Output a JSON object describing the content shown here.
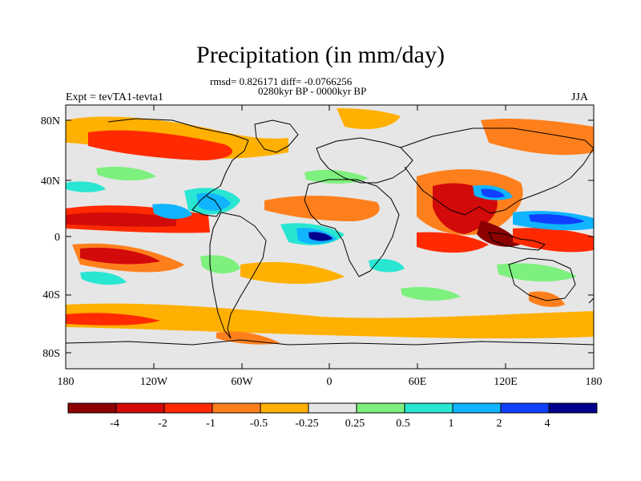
{
  "title": "Precipitation (in mm/day)",
  "stats_line": "rmsd= 0.826171 diff= -0.0766256",
  "period_line": "0280kyr BP - 0000kyr BP",
  "experiment": "Expt = tevTA1-tevta1",
  "season": "JJA",
  "lat_labels": [
    "80N",
    "40N",
    "0",
    "40S",
    "80S"
  ],
  "lon_labels": [
    "180",
    "120W",
    "60W",
    "0",
    "60E",
    "120E",
    "180"
  ],
  "colorbar": {
    "labels": [
      "-4",
      "-2",
      "-1",
      "-0.5",
      "-0.25",
      "0.25",
      "0.5",
      "1",
      "2",
      "4"
    ],
    "colors": [
      "#8c0000",
      "#d20a0a",
      "#ff2a00",
      "#ff7f1c",
      "#ffb000",
      "#e6e6e6",
      "#7df07d",
      "#28e6d2",
      "#10b4ff",
      "#1040ff",
      "#00008c"
    ]
  },
  "map_colors": {
    "background": "#e6e6e6",
    "coastline": "#000000"
  }
}
